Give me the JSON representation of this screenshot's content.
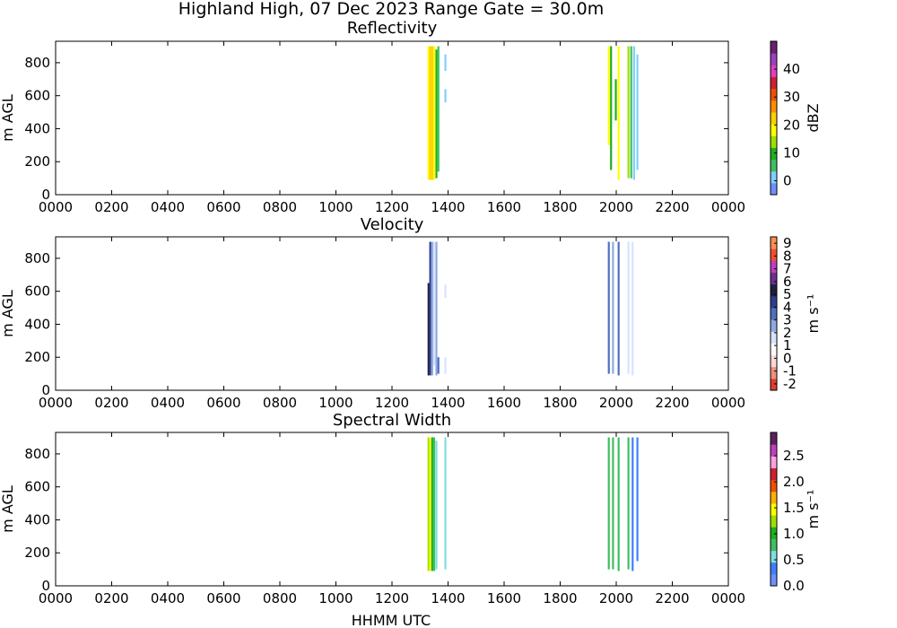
{
  "figure": {
    "title": "Highland High, 07 Dec 2023 Range Gate = 30.0m",
    "xlabel": "HHMM UTC"
  },
  "chart_data": [
    {
      "type": "heatmap",
      "title": "Reflectivity",
      "ylabel": "m AGL",
      "xticks": [
        "0000",
        "0200",
        "0400",
        "0600",
        "0800",
        "1000",
        "1200",
        "1400",
        "1600",
        "1800",
        "2000",
        "2200",
        "0000"
      ],
      "yticks": [
        0,
        200,
        400,
        600,
        800
      ],
      "xlim_hours": [
        0,
        24
      ],
      "ylim": [
        0,
        930
      ],
      "colorbar": {
        "label": "dBZ",
        "range": [
          -5,
          50
        ],
        "ticks": [
          0,
          10,
          20,
          30,
          40
        ],
        "colors": [
          "#6f8fff",
          "#7fd0ff",
          "#3fbf5f",
          "#1faf1f",
          "#9fdf00",
          "#ffff00",
          "#ffcf00",
          "#ff8f00",
          "#ef4f00",
          "#cf1f2f",
          "#df3fbf",
          "#9f3fbf",
          "#6f1f6f"
        ]
      },
      "data_segments": [
        {
          "time_hours": 13.27,
          "alt_range": [
            90,
            900
          ],
          "dbz": 18
        },
        {
          "time_hours": 13.33,
          "alt_range": [
            90,
            900
          ],
          "dbz": 22
        },
        {
          "time_hours": 13.4,
          "alt_range": [
            90,
            900
          ],
          "dbz": 24
        },
        {
          "time_hours": 13.47,
          "alt_range": [
            90,
            900
          ],
          "dbz": 20
        },
        {
          "time_hours": 13.55,
          "alt_range": [
            100,
            880
          ],
          "dbz": 8
        },
        {
          "time_hours": 13.62,
          "alt_range": [
            140,
            900
          ],
          "dbz": 4
        },
        {
          "time_hours": 13.87,
          "alt_range": [
            560,
            640
          ],
          "dbz": 0
        },
        {
          "time_hours": 13.87,
          "alt_range": [
            750,
            850
          ],
          "dbz": 0
        },
        {
          "time_hours": 19.7,
          "alt_range": [
            300,
            900
          ],
          "dbz": 18
        },
        {
          "time_hours": 19.78,
          "alt_range": [
            150,
            900
          ],
          "dbz": 10
        },
        {
          "time_hours": 19.95,
          "alt_range": [
            450,
            700
          ],
          "dbz": 8
        },
        {
          "time_hours": 20.05,
          "alt_range": [
            90,
            900
          ],
          "dbz": 20
        },
        {
          "time_hours": 20.4,
          "alt_range": [
            100,
            900
          ],
          "dbz": 12
        },
        {
          "time_hours": 20.5,
          "alt_range": [
            100,
            900
          ],
          "dbz": 6
        },
        {
          "time_hours": 20.6,
          "alt_range": [
            90,
            900
          ],
          "dbz": 2
        },
        {
          "time_hours": 20.72,
          "alt_range": [
            150,
            850
          ],
          "dbz": 0
        }
      ]
    },
    {
      "type": "heatmap",
      "title": "Velocity",
      "ylabel": "m AGL",
      "xticks": [
        "0000",
        "0200",
        "0400",
        "0600",
        "0800",
        "1000",
        "1200",
        "1400",
        "1600",
        "1800",
        "2000",
        "2200",
        "0000"
      ],
      "yticks": [
        0,
        200,
        400,
        600,
        800
      ],
      "xlim_hours": [
        0,
        24
      ],
      "ylim": [
        0,
        930
      ],
      "colorbar": {
        "label": "m s⁻¹",
        "range": [
          -2.5,
          9.5
        ],
        "ticks": [
          -2,
          -1,
          0,
          1,
          2,
          3,
          4,
          5,
          6,
          7,
          8,
          9
        ],
        "colors": [
          "#df3f2f",
          "#ef8f7f",
          "#ffd7d7",
          "#ffffff",
          "#d7e3ff",
          "#8fa9df",
          "#4f6fbf",
          "#2f3f8f",
          "#1f1f3f",
          "#6f2f8f",
          "#bf3fbf",
          "#ef4f2f",
          "#ff8f4f"
        ]
      },
      "data_segments": [
        {
          "time_hours": 13.27,
          "alt_range": [
            90,
            650
          ],
          "vel": 5.5
        },
        {
          "time_hours": 13.33,
          "alt_range": [
            90,
            900
          ],
          "vel": 4
        },
        {
          "time_hours": 13.4,
          "alt_range": [
            90,
            900
          ],
          "vel": 2.5
        },
        {
          "time_hours": 13.47,
          "alt_range": [
            150,
            900
          ],
          "vel": 2
        },
        {
          "time_hours": 13.55,
          "alt_range": [
            90,
            900
          ],
          "vel": 3
        },
        {
          "time_hours": 13.62,
          "alt_range": [
            100,
            200
          ],
          "vel": 3.5
        },
        {
          "time_hours": 13.87,
          "alt_range": [
            100,
            200
          ],
          "vel": 2
        },
        {
          "time_hours": 13.87,
          "alt_range": [
            560,
            640
          ],
          "vel": 2
        },
        {
          "time_hours": 19.7,
          "alt_range": [
            100,
            900
          ],
          "vel": 3.5
        },
        {
          "time_hours": 19.85,
          "alt_range": [
            100,
            900
          ],
          "vel": 3
        },
        {
          "time_hours": 20.05,
          "alt_range": [
            90,
            900
          ],
          "vel": 3.5
        },
        {
          "time_hours": 20.4,
          "alt_range": [
            100,
            900
          ],
          "vel": 2
        },
        {
          "time_hours": 20.55,
          "alt_range": [
            90,
            900
          ],
          "vel": 1.5
        },
        {
          "time_hours": 20.72,
          "alt_range": [
            100,
            900
          ],
          "vel": 1
        }
      ]
    },
    {
      "type": "heatmap",
      "title": "Spectral Width",
      "ylabel": "m AGL",
      "xlabel": "HHMM UTC",
      "xticks": [
        "0000",
        "0200",
        "0400",
        "0600",
        "0800",
        "1000",
        "1200",
        "1400",
        "1600",
        "1800",
        "2000",
        "2200",
        "0000"
      ],
      "yticks": [
        0,
        200,
        400,
        600,
        800
      ],
      "xlim_hours": [
        0,
        24
      ],
      "ylim": [
        0,
        930
      ],
      "colorbar": {
        "label": "m s⁻¹",
        "range": [
          0,
          2.95
        ],
        "ticks": [
          "0.0",
          "0.5",
          "1.0",
          "1.5",
          "2.0",
          "2.5"
        ],
        "colors": [
          "#6f8fff",
          "#3f7fff",
          "#7fdfdf",
          "#3fbf5f",
          "#1faf1f",
          "#9fdf00",
          "#ffff00",
          "#ffaf00",
          "#ef4f00",
          "#cf1f2f",
          "#ff9fdf",
          "#bf3fbf",
          "#5f1f5f"
        ]
      },
      "data_segments": [
        {
          "time_hours": 13.27,
          "alt_range": [
            90,
            900
          ],
          "sw": 1.2
        },
        {
          "time_hours": 13.33,
          "alt_range": [
            90,
            900
          ],
          "sw": 1.5
        },
        {
          "time_hours": 13.4,
          "alt_range": [
            90,
            900
          ],
          "sw": 1.1
        },
        {
          "time_hours": 13.47,
          "alt_range": [
            90,
            900
          ],
          "sw": 0.9
        },
        {
          "time_hours": 13.55,
          "alt_range": [
            100,
            880
          ],
          "sw": 0.6
        },
        {
          "time_hours": 13.87,
          "alt_range": [
            100,
            900
          ],
          "sw": 0.5
        },
        {
          "time_hours": 19.7,
          "alt_range": [
            100,
            900
          ],
          "sw": 0.8
        },
        {
          "time_hours": 19.85,
          "alt_range": [
            100,
            900
          ],
          "sw": 0.7
        },
        {
          "time_hours": 20.05,
          "alt_range": [
            90,
            900
          ],
          "sw": 0.8
        },
        {
          "time_hours": 20.4,
          "alt_range": [
            100,
            900
          ],
          "sw": 0.7
        },
        {
          "time_hours": 20.55,
          "alt_range": [
            90,
            900
          ],
          "sw": 0.3
        },
        {
          "time_hours": 20.72,
          "alt_range": [
            150,
            900
          ],
          "sw": 0.4
        }
      ]
    }
  ]
}
